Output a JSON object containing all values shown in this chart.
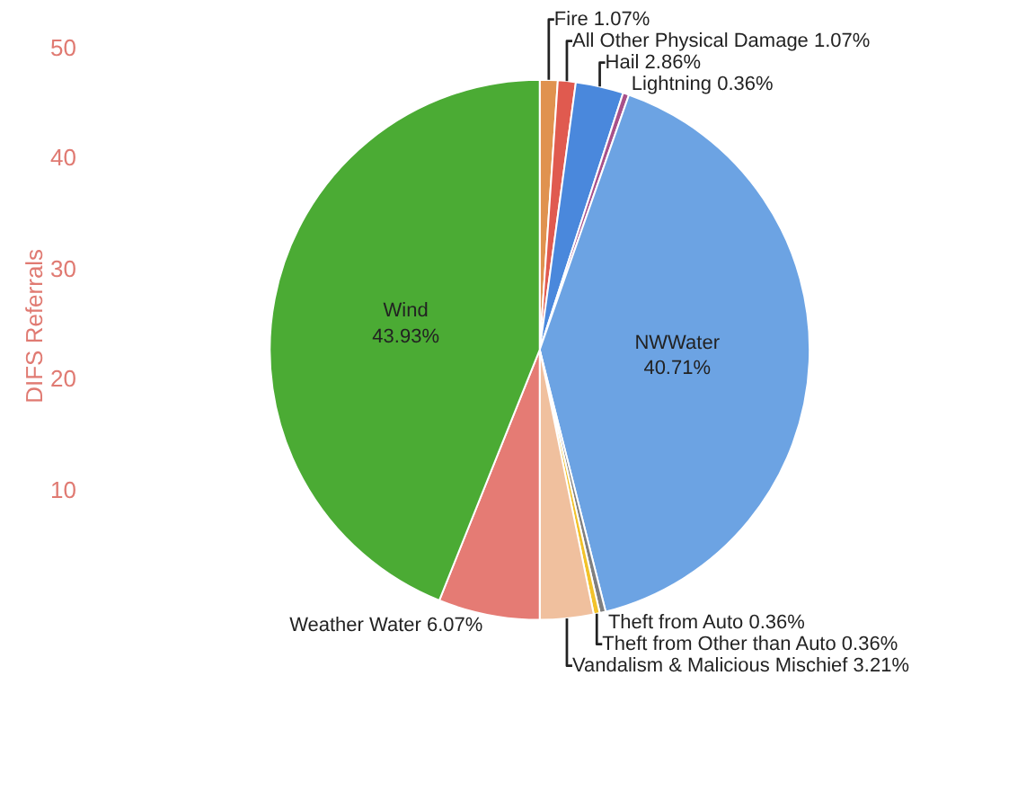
{
  "chart_data": {
    "type": "pie",
    "categories": [
      "Fire",
      "All Other Physical Damage",
      "Hail",
      "Lightning",
      "NWWater",
      "Theft from Auto",
      "Theft from Other than Auto",
      "Vandalism & Malicious Mischief",
      "Weather Water",
      "Wind"
    ],
    "values": [
      1.07,
      1.07,
      2.86,
      0.36,
      40.71,
      0.36,
      0.36,
      3.21,
      6.07,
      43.93
    ],
    "value_labels": [
      "1.07%",
      "1.07%",
      "2.86%",
      "0.36%",
      "40.71%",
      "0.36%",
      "0.36%",
      "3.21%",
      "6.07%",
      "43.93%"
    ],
    "colors": [
      "#e0924f",
      "#e05a4f",
      "#4a88dc",
      "#a8508a",
      "#6ca3e3",
      "#7f7f7f",
      "#f2c22a",
      "#f0c09e",
      "#e57b74",
      "#4bab34"
    ],
    "ylabel": "DIFS Referrals",
    "annotations": [
      "50",
      "40",
      "30",
      "20",
      "10"
    ],
    "legend": false
  }
}
